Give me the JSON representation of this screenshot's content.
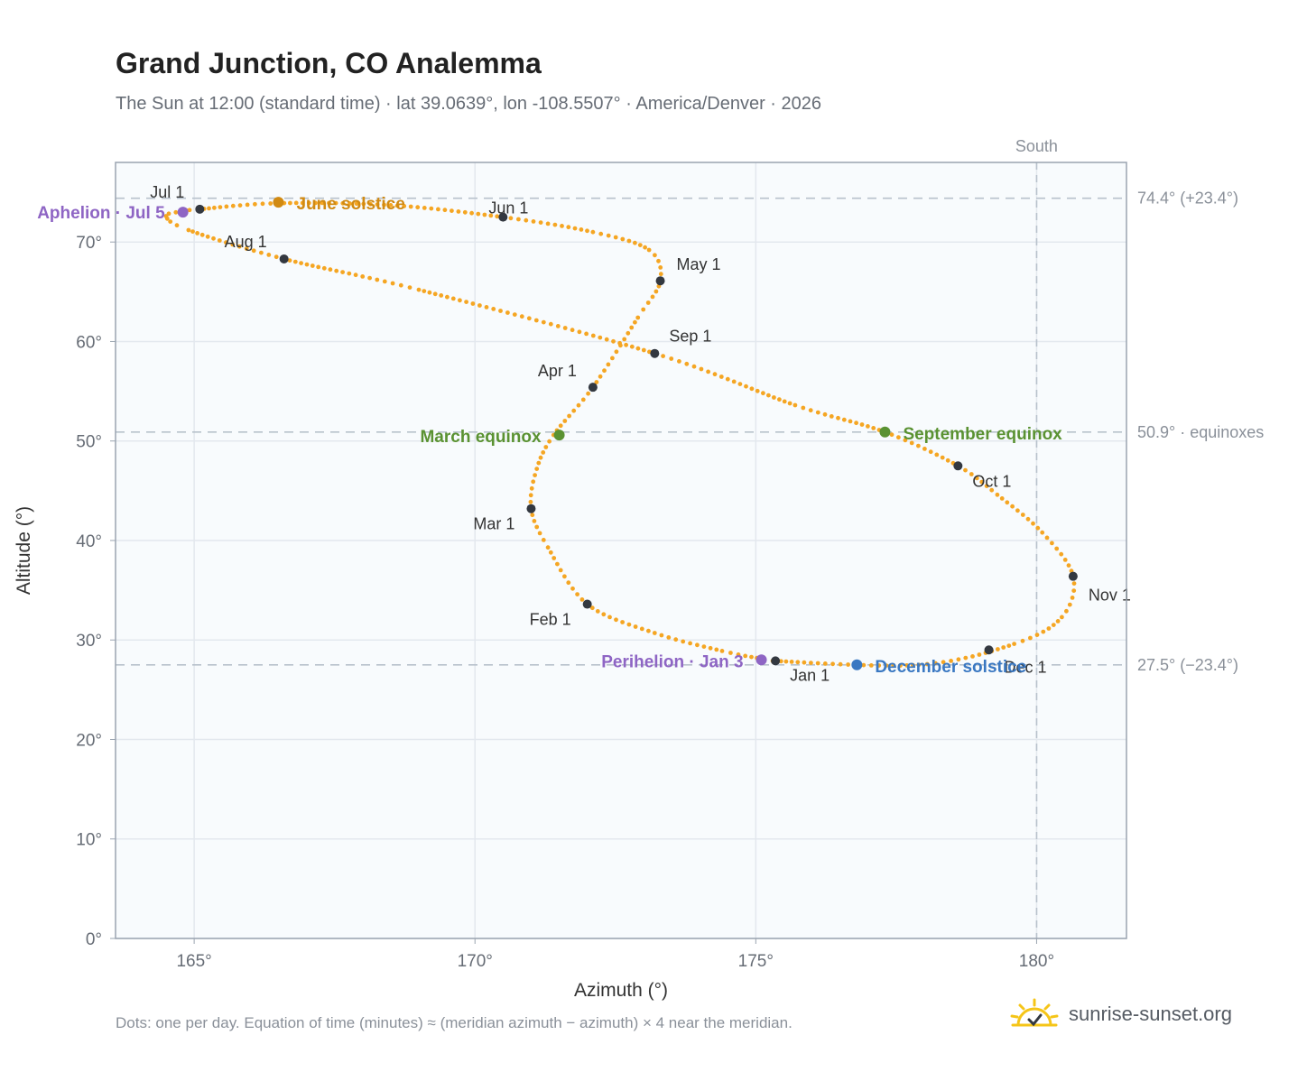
{
  "title": "Grand Junction, CO Analemma",
  "subtitle": "The Sun at 12:00 (standard time) · lat 39.0639°, lon -108.5507° · America/Denver · 2026",
  "footnote": "Dots: one per day. Equation of time (minutes) ≈ (meridian azimuth − azimuth) × 4 near the meridian.",
  "brand": {
    "name": "sunrise-sunset.org",
    "icon": "sun-logo-icon",
    "color": "#f5c518"
  },
  "colors": {
    "curve": "#f5a623",
    "month_marker": "#333840",
    "aphelion": "#8e65c4",
    "perihelion": "#8e65c4",
    "june_solstice": "#d18a12",
    "december_solstice": "#3a78c2",
    "equinox": "#5a9232",
    "reference_line": "#b8c2cc",
    "plot_bg": "#f8fbfd"
  },
  "chart_data": {
    "type": "scatter",
    "title": "Grand Junction, CO Analemma",
    "xlabel": "Azimuth (°)",
    "ylabel": "Altitude (°)",
    "xlim": [
      163.6,
      181.6
    ],
    "ylim": [
      0,
      78
    ],
    "x_ticks": [
      165,
      170,
      175,
      180
    ],
    "x_tick_labels": [
      "165°",
      "170°",
      "175°",
      "180°"
    ],
    "y_ticks": [
      0,
      10,
      20,
      30,
      40,
      50,
      60,
      70
    ],
    "y_tick_labels": [
      "0°",
      "10°",
      "20°",
      "30°",
      "40°",
      "50°",
      "60°",
      "70°"
    ],
    "grid": true,
    "south": {
      "azimuth": 180,
      "label": "South"
    },
    "reference_lines": [
      {
        "altitude": 74.4,
        "label": "74.4° (+23.4°)"
      },
      {
        "altitude": 50.9,
        "label": "50.9° · equinoxes"
      },
      {
        "altitude": 27.5,
        "label": "27.5° (−23.4°)"
      }
    ],
    "analemma_path": [
      [
        175.3,
        27.9
      ],
      [
        177.9,
        27.5
      ],
      [
        179.6,
        29.6
      ],
      [
        180.45,
        32.3
      ],
      [
        180.65,
        36.4
      ],
      [
        180.1,
        40.8
      ],
      [
        179.3,
        44.6
      ],
      [
        178.6,
        47.5
      ],
      [
        177.3,
        50.9
      ],
      [
        175.7,
        53.6
      ],
      [
        173.2,
        58.8
      ],
      [
        169.0,
        65.2
      ],
      [
        166.6,
        68.3
      ],
      [
        164.9,
        71.2
      ],
      [
        164.5,
        72.6
      ],
      [
        164.8,
        73.1
      ],
      [
        165.1,
        73.3
      ],
      [
        166.5,
        73.9
      ],
      [
        168.5,
        73.7
      ],
      [
        170.5,
        72.5
      ],
      [
        172.1,
        71.0
      ],
      [
        173.1,
        69.2
      ],
      [
        173.3,
        66.1
      ],
      [
        172.9,
        62.4
      ],
      [
        172.1,
        55.4
      ],
      [
        171.4,
        50.6
      ],
      [
        171.1,
        47.2
      ],
      [
        171.0,
        43.2
      ],
      [
        171.3,
        39.3
      ],
      [
        172.0,
        33.6
      ],
      [
        173.2,
        30.7
      ],
      [
        174.4,
        28.9
      ],
      [
        175.1,
        28.1
      ],
      [
        175.3,
        27.9
      ]
    ],
    "month_points": [
      {
        "label": "Jan 1",
        "azimuth": 175.35,
        "altitude": 27.9
      },
      {
        "label": "Feb 1",
        "azimuth": 172.0,
        "altitude": 33.6
      },
      {
        "label": "Mar 1",
        "azimuth": 171.0,
        "altitude": 43.2
      },
      {
        "label": "Apr 1",
        "azimuth": 172.1,
        "altitude": 55.4
      },
      {
        "label": "May 1",
        "azimuth": 173.3,
        "altitude": 66.1
      },
      {
        "label": "Jun 1",
        "azimuth": 170.5,
        "altitude": 72.5
      },
      {
        "label": "Jul 1",
        "azimuth": 165.1,
        "altitude": 73.3
      },
      {
        "label": "Aug 1",
        "azimuth": 166.6,
        "altitude": 68.3
      },
      {
        "label": "Sep 1",
        "azimuth": 173.2,
        "altitude": 58.8
      },
      {
        "label": "Oct 1",
        "azimuth": 178.6,
        "altitude": 47.5
      },
      {
        "label": "Nov 1",
        "azimuth": 180.65,
        "altitude": 36.4
      },
      {
        "label": "Dec 1",
        "azimuth": 179.15,
        "altitude": 29.0
      }
    ],
    "special_points": [
      {
        "label": "Aphelion · Jul 5",
        "azimuth": 164.8,
        "altitude": 73.0,
        "kind": "aphelion"
      },
      {
        "label": "June solstice",
        "azimuth": 166.5,
        "altitude": 74.0,
        "kind": "june_solstice"
      },
      {
        "label": "March equinox",
        "azimuth": 171.5,
        "altitude": 50.6,
        "kind": "equinox"
      },
      {
        "label": "September equinox",
        "azimuth": 177.3,
        "altitude": 50.9,
        "kind": "equinox"
      },
      {
        "label": "Perihelion · Jan 3",
        "azimuth": 175.1,
        "altitude": 28.0,
        "kind": "perihelion"
      },
      {
        "label": "December solstice",
        "azimuth": 176.8,
        "altitude": 27.5,
        "kind": "december_solstice"
      }
    ]
  }
}
